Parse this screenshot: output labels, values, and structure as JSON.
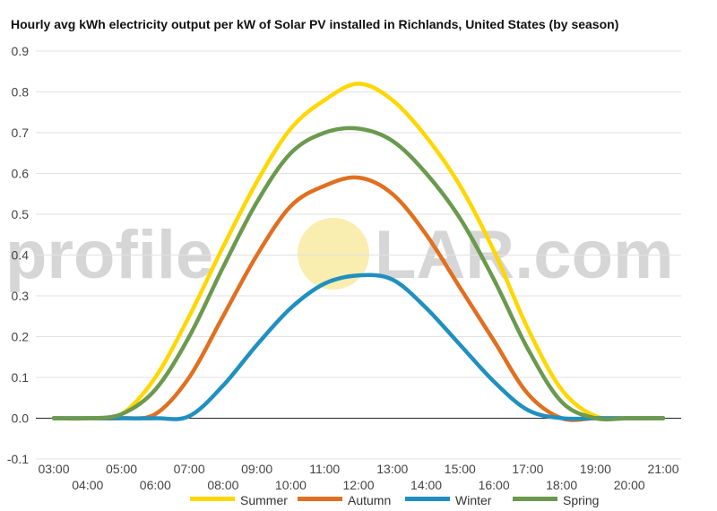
{
  "chart_data": {
    "type": "line",
    "title": "Hourly avg kWh electricity output per kW of Solar PV installed in Richlands, United States (by season)",
    "xlabel": "",
    "ylabel": "",
    "x": [
      "03:00",
      "04:00",
      "05:00",
      "06:00",
      "07:00",
      "08:00",
      "09:00",
      "10:00",
      "11:00",
      "12:00",
      "13:00",
      "14:00",
      "15:00",
      "16:00",
      "17:00",
      "18:00",
      "19:00",
      "20:00",
      "21:00"
    ],
    "ylim": [
      -0.1,
      0.9
    ],
    "yticks": [
      "-0.1",
      "0.0",
      "0.1",
      "0.2",
      "0.3",
      "0.4",
      "0.5",
      "0.6",
      "0.7",
      "0.8",
      "0.9"
    ],
    "grid": true,
    "legend_position": "bottom",
    "series": [
      {
        "name": "Summer",
        "color": "#FFD700",
        "values": [
          0,
          0,
          0.01,
          0.1,
          0.25,
          0.42,
          0.58,
          0.71,
          0.78,
          0.82,
          0.78,
          0.69,
          0.57,
          0.41,
          0.22,
          0.07,
          0.005,
          0,
          0
        ]
      },
      {
        "name": "Autumn",
        "color": "#E07020",
        "values": [
          0,
          0,
          0,
          0.01,
          0.1,
          0.25,
          0.4,
          0.52,
          0.57,
          0.59,
          0.55,
          0.45,
          0.32,
          0.19,
          0.06,
          0,
          0,
          0,
          0
        ]
      },
      {
        "name": "Winter",
        "color": "#2090C0",
        "values": [
          0,
          0,
          0,
          0,
          0.005,
          0.08,
          0.18,
          0.27,
          0.33,
          0.35,
          0.34,
          0.27,
          0.18,
          0.09,
          0.02,
          0,
          0,
          0,
          0
        ]
      },
      {
        "name": "Spring",
        "color": "#6B9A4E",
        "values": [
          0,
          0,
          0.01,
          0.07,
          0.2,
          0.37,
          0.53,
          0.65,
          0.7,
          0.71,
          0.68,
          0.6,
          0.49,
          0.34,
          0.17,
          0.04,
          0,
          0,
          0
        ]
      }
    ]
  },
  "watermark": {
    "before": "profile",
    "after": "LAR.com",
    "sun_color": "#F9EDB0"
  }
}
